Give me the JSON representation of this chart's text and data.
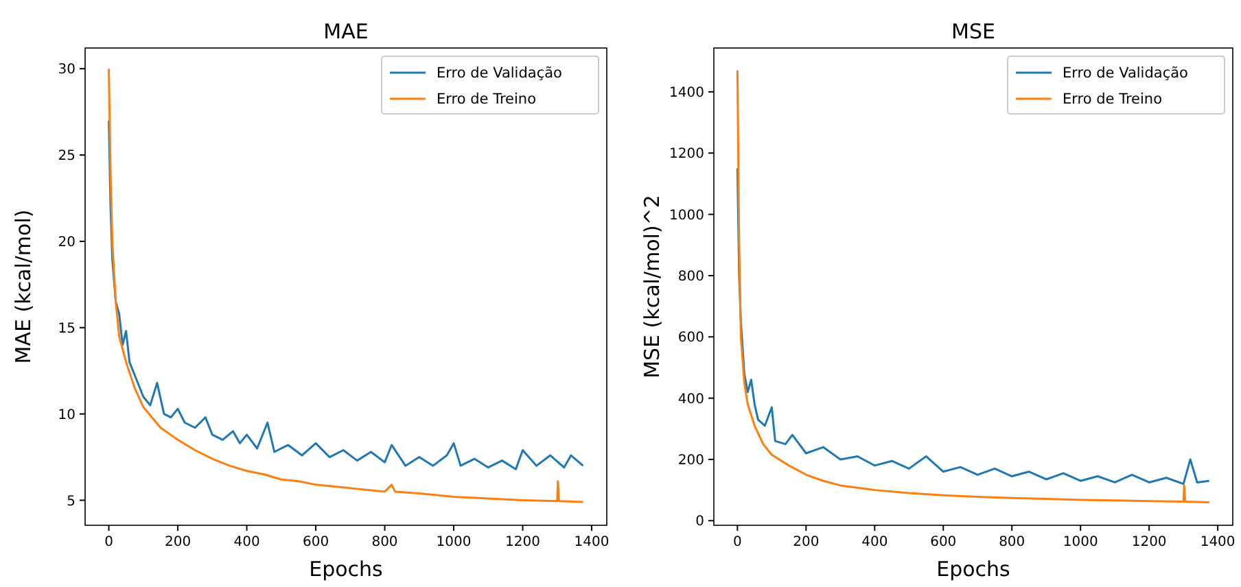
{
  "chart_data": [
    {
      "type": "line",
      "title": "MAE",
      "xlabel": "Epochs",
      "ylabel": "MAE (kcal/mol)",
      "xlim": [
        -68.75,
        1443.75
      ],
      "ylim": [
        3.55,
        31.2
      ],
      "xticks": [
        0,
        200,
        400,
        600,
        800,
        1000,
        1200,
        1400
      ],
      "yticks": [
        5,
        10,
        15,
        20,
        25,
        30
      ],
      "legend": "top right",
      "series": [
        {
          "name": "Erro de Validação",
          "color": "#1f77b4",
          "x": [
            0,
            5,
            10,
            20,
            30,
            40,
            50,
            60,
            80,
            100,
            120,
            140,
            160,
            180,
            200,
            220,
            250,
            280,
            300,
            330,
            360,
            380,
            400,
            430,
            460,
            480,
            520,
            560,
            600,
            640,
            680,
            720,
            760,
            800,
            820,
            860,
            900,
            940,
            980,
            1000,
            1020,
            1060,
            1100,
            1140,
            1180,
            1200,
            1240,
            1280,
            1320,
            1340,
            1375
          ],
          "values": [
            27,
            22,
            19,
            16.5,
            15.8,
            14,
            14.8,
            13,
            12,
            11,
            10.5,
            11.8,
            10,
            9.8,
            10.3,
            9.5,
            9.2,
            9.8,
            8.8,
            8.5,
            9,
            8.3,
            8.8,
            8,
            9.5,
            7.8,
            8.2,
            7.6,
            8.3,
            7.5,
            7.9,
            7.3,
            7.8,
            7.2,
            8.2,
            7,
            7.5,
            7,
            7.6,
            8.3,
            7,
            7.4,
            6.9,
            7.3,
            6.8,
            7.9,
            7,
            7.6,
            6.9,
            7.6,
            7
          ]
        },
        {
          "name": "Erro de Treino",
          "color": "#ff7f0e",
          "x": [
            0,
            5,
            10,
            20,
            30,
            50,
            75,
            100,
            150,
            200,
            250,
            300,
            350,
            400,
            450,
            500,
            550,
            600,
            700,
            800,
            820,
            830,
            900,
            1000,
            1100,
            1200,
            1300,
            1302,
            1305,
            1375
          ],
          "values": [
            30,
            24,
            20,
            16.5,
            14.5,
            13,
            11.5,
            10.4,
            9.2,
            8.5,
            7.9,
            7.4,
            7,
            6.7,
            6.5,
            6.2,
            6.1,
            5.9,
            5.7,
            5.5,
            5.9,
            5.5,
            5.4,
            5.2,
            5.1,
            5,
            4.95,
            6.1,
            4.95,
            4.9
          ]
        }
      ]
    },
    {
      "type": "line",
      "title": "MSE",
      "xlabel": "Epochs",
      "ylabel": "MSE (kcal/mol)^2",
      "xlim": [
        -68.75,
        1443.75
      ],
      "ylim": [
        -15,
        1543
      ],
      "xticks": [
        0,
        200,
        400,
        600,
        800,
        1000,
        1200,
        1400
      ],
      "yticks": [
        0,
        200,
        400,
        600,
        800,
        1000,
        1200,
        1400
      ],
      "legend": "top right",
      "series": [
        {
          "name": "Erro de Validação",
          "color": "#1f77b4",
          "x": [
            0,
            5,
            10,
            20,
            30,
            40,
            50,
            60,
            80,
            100,
            110,
            140,
            160,
            200,
            250,
            300,
            350,
            400,
            450,
            500,
            550,
            600,
            650,
            700,
            750,
            800,
            850,
            900,
            950,
            1000,
            1050,
            1100,
            1150,
            1200,
            1250,
            1300,
            1320,
            1340,
            1375
          ],
          "values": [
            1150,
            800,
            650,
            480,
            420,
            460,
            380,
            330,
            310,
            370,
            260,
            250,
            280,
            220,
            240,
            200,
            210,
            180,
            195,
            170,
            210,
            160,
            175,
            150,
            170,
            145,
            160,
            135,
            155,
            130,
            145,
            125,
            150,
            125,
            140,
            120,
            200,
            125,
            130
          ]
        },
        {
          "name": "Erro de Treino",
          "color": "#ff7f0e",
          "x": [
            0,
            5,
            10,
            20,
            30,
            50,
            75,
            100,
            150,
            200,
            250,
            300,
            400,
            500,
            600,
            700,
            800,
            900,
            1000,
            1100,
            1200,
            1300,
            1302,
            1305,
            1375
          ],
          "values": [
            1470,
            900,
            600,
            450,
            380,
            310,
            250,
            215,
            180,
            150,
            130,
            115,
            100,
            90,
            83,
            78,
            74,
            71,
            68,
            66,
            64,
            62,
            115,
            62,
            60
          ]
        }
      ]
    }
  ]
}
